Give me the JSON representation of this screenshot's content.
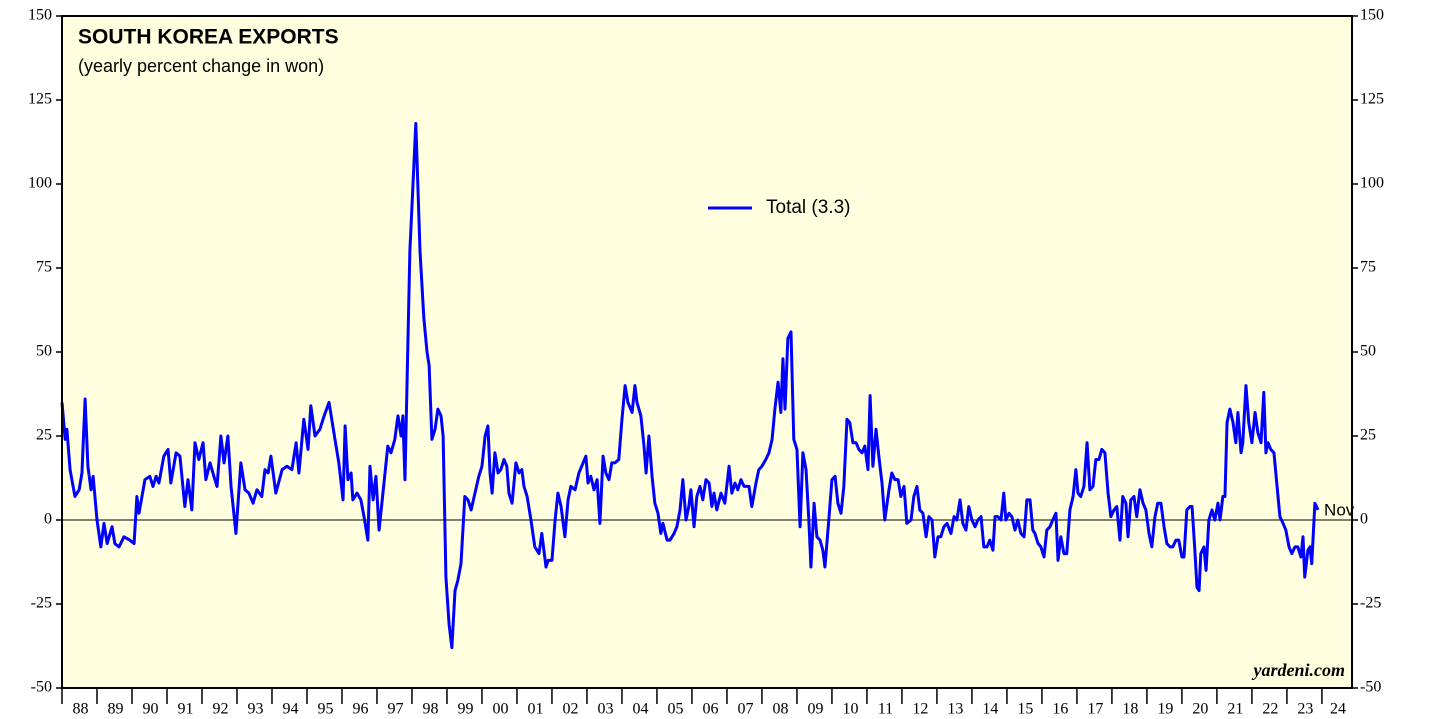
{
  "chart_data": {
    "type": "line",
    "title": "SOUTH KOREA EXPORTS",
    "subtitle": "(yearly percent change in won)",
    "source": "yardeni.com",
    "end_label": "Nov",
    "xlim": [
      1988,
      2024.86
    ],
    "xticks": [
      {
        "value": 1988,
        "label": "88"
      },
      {
        "value": 1989,
        "label": "89"
      },
      {
        "value": 1990,
        "label": "90"
      },
      {
        "value": 1991,
        "label": "91"
      },
      {
        "value": 1992,
        "label": "92"
      },
      {
        "value": 1993,
        "label": "93"
      },
      {
        "value": 1994,
        "label": "94"
      },
      {
        "value": 1995,
        "label": "95"
      },
      {
        "value": 1996,
        "label": "96"
      },
      {
        "value": 1997,
        "label": "97"
      },
      {
        "value": 1998,
        "label": "98"
      },
      {
        "value": 1999,
        "label": "99"
      },
      {
        "value": 2000,
        "label": "00"
      },
      {
        "value": 2001,
        "label": "01"
      },
      {
        "value": 2002,
        "label": "02"
      },
      {
        "value": 2003,
        "label": "03"
      },
      {
        "value": 2004,
        "label": "04"
      },
      {
        "value": 2005,
        "label": "05"
      },
      {
        "value": 2006,
        "label": "06"
      },
      {
        "value": 2007,
        "label": "07"
      },
      {
        "value": 2008,
        "label": "08"
      },
      {
        "value": 2009,
        "label": "09"
      },
      {
        "value": 2010,
        "label": "10"
      },
      {
        "value": 2011,
        "label": "11"
      },
      {
        "value": 2012,
        "label": "12"
      },
      {
        "value": 2013,
        "label": "13"
      },
      {
        "value": 2014,
        "label": "14"
      },
      {
        "value": 2015,
        "label": "15"
      },
      {
        "value": 2016,
        "label": "16"
      },
      {
        "value": 2017,
        "label": "17"
      },
      {
        "value": 2018,
        "label": "18"
      },
      {
        "value": 2019,
        "label": "19"
      },
      {
        "value": 2020,
        "label": "20"
      },
      {
        "value": 2021,
        "label": "21"
      },
      {
        "value": 2022,
        "label": "22"
      },
      {
        "value": 2023,
        "label": "23"
      },
      {
        "value": 2024,
        "label": "24"
      }
    ],
    "ylim": [
      -50,
      150
    ],
    "yticks": [
      -50,
      -25,
      0,
      25,
      50,
      75,
      100,
      125,
      150
    ],
    "zero_line": true,
    "x": [
      1988.0,
      1988.09,
      1988.14,
      1988.23,
      1988.37,
      1988.49,
      1988.57,
      1988.66,
      1988.74,
      1988.83,
      1988.89,
      1989.0,
      1989.11,
      1989.2,
      1989.29,
      1989.43,
      1989.51,
      1989.63,
      1989.77,
      1989.94,
      1990.06,
      1990.14,
      1990.2,
      1990.37,
      1990.51,
      1990.6,
      1990.69,
      1990.77,
      1990.91,
      1991.03,
      1991.11,
      1991.26,
      1991.37,
      1991.51,
      1991.6,
      1991.71,
      1991.8,
      1991.91,
      1992.03,
      1992.11,
      1992.23,
      1992.34,
      1992.43,
      1992.54,
      1992.63,
      1992.74,
      1992.83,
      1992.97,
      1993.11,
      1993.23,
      1993.34,
      1993.46,
      1993.57,
      1993.71,
      1993.8,
      1993.89,
      1993.97,
      1994.11,
      1994.29,
      1994.43,
      1994.57,
      1994.69,
      1994.77,
      1994.91,
      1995.03,
      1995.11,
      1995.23,
      1995.37,
      1995.49,
      1995.63,
      1995.8,
      1995.91,
      1996.03,
      1996.09,
      1996.17,
      1996.26,
      1996.31,
      1996.43,
      1996.54,
      1996.63,
      1996.74,
      1996.8,
      1996.89,
      1996.97,
      1997.06,
      1997.17,
      1997.31,
      1997.4,
      1997.51,
      1997.6,
      1997.69,
      1997.74,
      1997.8,
      1997.94,
      1998.11,
      1998.23,
      1998.34,
      1998.43,
      1998.49,
      1998.57,
      1998.66,
      1998.74,
      1998.83,
      1998.89,
      1998.97,
      1999.06,
      1999.14,
      1999.23,
      1999.31,
      1999.4,
      1999.51,
      1999.6,
      1999.69,
      1999.8,
      1999.91,
      2000.0,
      2000.09,
      2000.17,
      2000.23,
      2000.29,
      2000.37,
      2000.46,
      2000.54,
      2000.63,
      2000.71,
      2000.77,
      2000.86,
      2000.97,
      2001.06,
      2001.14,
      2001.2,
      2001.29,
      2001.4,
      2001.51,
      2001.63,
      2001.71,
      2001.83,
      2001.89,
      2002.0,
      2002.09,
      2002.17,
      2002.26,
      2002.37,
      2002.46,
      2002.54,
      2002.66,
      2002.77,
      2002.89,
      2002.97,
      2003.03,
      2003.11,
      2003.2,
      2003.29,
      2003.37,
      2003.46,
      2003.54,
      2003.63,
      2003.71,
      2003.8,
      2003.91,
      2004.0,
      2004.09,
      2004.17,
      2004.29,
      2004.37,
      2004.43,
      2004.54,
      2004.63,
      2004.69,
      2004.77,
      2004.86,
      2004.94,
      2005.03,
      2005.11,
      2005.17,
      2005.29,
      2005.37,
      2005.49,
      2005.57,
      2005.66,
      2005.74,
      2005.83,
      2005.91,
      2005.97,
      2006.06,
      2006.14,
      2006.23,
      2006.31,
      2006.4,
      2006.49,
      2006.57,
      2006.63,
      2006.71,
      2006.83,
      2006.94,
      2007.06,
      2007.14,
      2007.23,
      2007.31,
      2007.4,
      2007.49,
      2007.63,
      2007.71,
      2007.83,
      2007.91,
      2008.0,
      2008.11,
      2008.2,
      2008.29,
      2008.37,
      2008.46,
      2008.54,
      2008.6,
      2008.66,
      2008.74,
      2008.83,
      2008.91,
      2009.0,
      2009.09,
      2009.17,
      2009.26,
      2009.34,
      2009.4,
      2009.49,
      2009.57,
      2009.66,
      2009.74,
      2009.8,
      2009.91,
      2010.0,
      2010.09,
      2010.17,
      2010.26,
      2010.34,
      2010.43,
      2010.51,
      2010.6,
      2010.69,
      2010.77,
      2010.86,
      2010.94,
      2011.03,
      2011.09,
      2011.17,
      2011.26,
      2011.34,
      2011.43,
      2011.51,
      2011.63,
      2011.71,
      2011.8,
      2011.89,
      2011.97,
      2012.06,
      2012.14,
      2012.26,
      2012.34,
      2012.43,
      2012.51,
      2012.6,
      2012.69,
      2012.77,
      2012.86,
      2012.94,
      2013.03,
      2013.11,
      2013.2,
      2013.29,
      2013.4,
      2013.49,
      2013.57,
      2013.66,
      2013.74,
      2013.83,
      2013.91,
      2014.0,
      2014.09,
      2014.17,
      2014.26,
      2014.34,
      2014.43,
      2014.51,
      2014.6,
      2014.66,
      2014.74,
      2014.83,
      2014.91,
      2014.97,
      2015.06,
      2015.14,
      2015.23,
      2015.31,
      2015.4,
      2015.49,
      2015.57,
      2015.66,
      2015.74,
      2015.8,
      2015.89,
      2015.97,
      2016.06,
      2016.14,
      2016.23,
      2016.31,
      2016.4,
      2016.46,
      2016.54,
      2016.63,
      2016.71,
      2016.8,
      2016.89,
      2016.97,
      2017.03,
      2017.11,
      2017.2,
      2017.29,
      2017.37,
      2017.46,
      2017.54,
      2017.63,
      2017.71,
      2017.8,
      2017.89,
      2017.97,
      2018.06,
      2018.14,
      2018.23,
      2018.31,
      2018.4,
      2018.46,
      2018.54,
      2018.63,
      2018.71,
      2018.8,
      2018.89,
      2018.97,
      2019.06,
      2019.14,
      2019.23,
      2019.31,
      2019.4,
      2019.49,
      2019.57,
      2019.66,
      2019.74,
      2019.83,
      2019.91,
      2020.0,
      2020.06,
      2020.14,
      2020.23,
      2020.29,
      2020.37,
      2020.43,
      2020.49,
      2020.54,
      2020.63,
      2020.69,
      2020.77,
      2020.86,
      2020.94,
      2021.03,
      2021.09,
      2021.17,
      2021.23,
      2021.29,
      2021.37,
      2021.46,
      2021.54,
      2021.6,
      2021.69,
      2021.74,
      2021.83,
      2021.91,
      2022.0,
      2022.09,
      2022.17,
      2022.26,
      2022.34,
      2022.4,
      2022.46,
      2022.54,
      2022.63,
      2022.71,
      2022.8,
      2022.89,
      2022.97,
      2023.06,
      2023.14,
      2023.23,
      2023.31,
      2023.4,
      2023.46,
      2023.51,
      2023.6,
      2023.66,
      2023.71,
      2023.8,
      2023.89
    ],
    "series": [
      {
        "name": "Total (3.3)",
        "color": "#0000ff",
        "values": [
          35,
          24,
          27,
          15,
          7,
          9,
          14,
          36,
          16,
          9,
          13,
          0,
          -8,
          -1,
          -7,
          -2,
          -7,
          -8,
          -5,
          -6,
          -7,
          7,
          2,
          12,
          13,
          10,
          13,
          11,
          19,
          21,
          11,
          20,
          19,
          4,
          12,
          3,
          23,
          18,
          23,
          12,
          17,
          13,
          10,
          25,
          17,
          25,
          10,
          -4,
          17,
          9,
          8,
          5,
          9,
          7,
          15,
          14,
          19,
          8,
          15,
          16,
          15,
          23,
          14,
          30,
          21,
          34,
          25,
          27,
          31,
          35,
          24,
          17,
          6,
          28,
          12,
          14,
          6,
          8,
          6,
          1,
          -6,
          16,
          6,
          13,
          -3,
          8,
          22,
          20,
          24,
          31,
          25,
          31,
          12,
          80,
          118,
          80,
          60,
          50,
          46,
          24,
          27,
          33,
          31,
          25,
          -17,
          -31,
          -38,
          -21,
          -18,
          -13,
          7,
          6,
          3,
          8,
          13,
          16,
          25,
          28,
          14,
          8,
          20,
          14,
          15,
          18,
          16,
          8,
          5,
          17,
          14,
          15,
          10,
          7,
          0,
          -8,
          -10,
          -4,
          -14,
          -12,
          -12,
          0,
          8,
          4,
          -5,
          6,
          10,
          9,
          14,
          17,
          19,
          11,
          13,
          9,
          12,
          -1,
          19,
          14,
          12,
          17,
          17,
          18,
          30,
          40,
          35,
          32,
          40,
          35,
          31,
          22,
          14,
          25,
          13,
          5,
          2,
          -4,
          -1,
          -6,
          -6,
          -4,
          -2,
          3,
          12,
          0,
          4,
          9,
          -2,
          7,
          10,
          6,
          12,
          11,
          4,
          8,
          3,
          8,
          5,
          16,
          8,
          11,
          9,
          12,
          10,
          10,
          4,
          11,
          15,
          16,
          18,
          20,
          24,
          33,
          41,
          32,
          48,
          33,
          54,
          56,
          24,
          21,
          -2,
          20,
          15,
          0,
          -14,
          5,
          -5,
          -6,
          -9,
          -14,
          0,
          12,
          13,
          5,
          2,
          10,
          30,
          29,
          23,
          23,
          21,
          20,
          22,
          15,
          37,
          16,
          27,
          19,
          11,
          0,
          9,
          14,
          12,
          12,
          7,
          10,
          -1,
          0,
          7,
          10,
          3,
          2,
          -5,
          1,
          0,
          -11,
          -5,
          -5,
          -2,
          -1,
          -4,
          1,
          0,
          6,
          -1,
          -3,
          4,
          0,
          -2,
          0,
          1,
          -8,
          -8,
          -6,
          -9,
          1,
          1,
          0,
          8,
          0,
          2,
          1,
          -3,
          0,
          -4,
          -5,
          6,
          6,
          -3,
          -4,
          -7,
          -8,
          -11,
          -3,
          -2,
          0,
          2,
          -12,
          -5,
          -10,
          -10,
          3,
          7,
          15,
          8,
          7,
          10,
          23,
          9,
          10,
          18,
          18,
          21,
          20,
          8,
          1,
          3,
          4,
          -6,
          7,
          5,
          -5,
          6,
          7,
          1,
          9,
          5,
          3,
          -4,
          -8,
          1,
          5,
          5,
          -2,
          -7,
          -8,
          -8,
          -6,
          -6,
          -11,
          -11,
          3,
          4,
          4,
          -9,
          -20,
          -21,
          -10,
          -8,
          -15,
          0,
          3,
          0,
          5,
          0,
          7,
          7,
          29,
          33,
          29,
          23,
          32,
          20,
          23,
          40,
          29,
          23,
          32,
          26,
          23,
          38,
          20,
          23,
          21,
          20,
          11,
          1,
          -1,
          -3,
          -8,
          -10,
          -8,
          -8,
          -11,
          -5,
          -17,
          -9,
          -8,
          -13,
          5,
          3
        ]
      }
    ]
  }
}
